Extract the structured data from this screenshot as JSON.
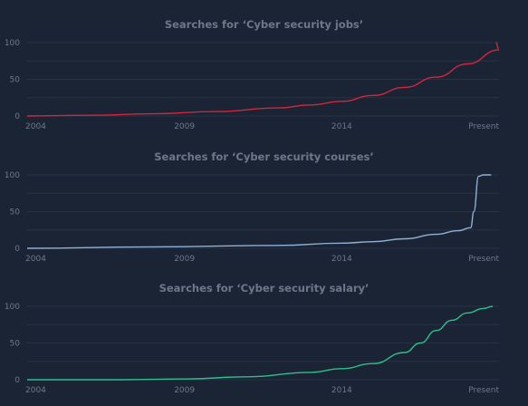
{
  "chart_data": [
    {
      "type": "line",
      "title": "Searches for ‘Cyber security jobs’",
      "x_tick_labels": [
        "2004",
        "2009",
        "2014",
        "Present"
      ],
      "y_tick_labels": [
        "100",
        "50",
        "0"
      ],
      "ylim": [
        0,
        100
      ],
      "grid": true,
      "color": "#d2263c",
      "series": [
        {
          "x": [
            2004,
            2006,
            2008,
            2010,
            2012,
            2013,
            2014,
            2015,
            2016,
            2017,
            2018,
            2019,
            2018.9
          ],
          "y": [
            0,
            1,
            3,
            6,
            11,
            15,
            20,
            28,
            39,
            53,
            71,
            90,
            100
          ]
        }
      ]
    },
    {
      "type": "line",
      "title": "Searches for ‘Cyber security courses’",
      "x_tick_labels": [
        "2004",
        "2009",
        "2014",
        "Present"
      ],
      "y_tick_labels": [
        "100",
        "50",
        "0"
      ],
      "ylim": [
        0,
        100
      ],
      "grid": true,
      "color": "#8fb0d8",
      "series": [
        {
          "x": [
            2004,
            2008,
            2012,
            2014,
            2015,
            2016,
            2017,
            2017.7,
            2018.1,
            2018.2,
            2018.35,
            2018.5,
            2018.75
          ],
          "y": [
            0,
            2,
            4,
            7,
            9,
            13,
            19,
            24,
            28,
            50,
            98,
            100,
            100
          ]
        }
      ]
    },
    {
      "type": "line",
      "title": "Searches for ‘Cyber security salary’",
      "x_tick_labels": [
        "2004",
        "2009",
        "2014",
        "Present"
      ],
      "y_tick_labels": [
        "100",
        "50",
        "0"
      ],
      "ylim": [
        0,
        100
      ],
      "grid": true,
      "color": "#2fbf8c",
      "series": [
        {
          "x": [
            2004,
            2007,
            2009,
            2011,
            2013,
            2014,
            2015,
            2016,
            2016.5,
            2017,
            2017.5,
            2018,
            2018.5,
            2018.8
          ],
          "y": [
            0,
            0,
            1,
            4,
            10,
            15,
            22,
            37,
            50,
            67,
            81,
            91,
            97,
            100
          ]
        }
      ]
    }
  ]
}
